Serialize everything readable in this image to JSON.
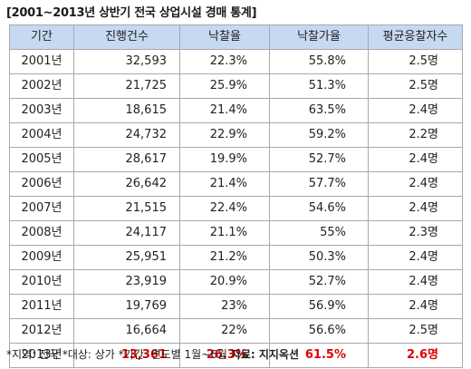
{
  "title": "[2001~2013년 상반기 전국 상업시설 경매 통계]",
  "table": {
    "headers": [
      "기간",
      "진행건수",
      "낙찰율",
      "낙찰가율",
      "평균응찰자수"
    ],
    "rows": [
      [
        "2001년",
        "32,593",
        "22.3%",
        "55.8%",
        "2.5명"
      ],
      [
        "2002년",
        "21,725",
        "25.9%",
        "51.3%",
        "2.5명"
      ],
      [
        "2003년",
        "18,615",
        "21.4%",
        "63.5%",
        "2.4명"
      ],
      [
        "2004년",
        "24,732",
        "22.9%",
        "59.2%",
        "2.2명"
      ],
      [
        "2005년",
        "28,617",
        "19.9%",
        "52.7%",
        "2.4명"
      ],
      [
        "2006년",
        "26,642",
        "21.4%",
        "57.7%",
        "2.4명"
      ],
      [
        "2007년",
        "21,515",
        "22.4%",
        "54.6%",
        "2.4명"
      ],
      [
        "2008년",
        "24,117",
        "21.1%",
        "55%",
        "2.3명"
      ],
      [
        "2009년",
        "25,951",
        "21.2%",
        "50.3%",
        "2.4명"
      ],
      [
        "2010년",
        "23,919",
        "20.9%",
        "52.7%",
        "2.4명"
      ],
      [
        "2011년",
        "19,769",
        "23%",
        "56.9%",
        "2.4명"
      ],
      [
        "2012년",
        "16,664",
        "22%",
        "56.6%",
        "2.5명"
      ],
      [
        "2013년",
        "13,361",
        "26.3%",
        "61.5%",
        "2.6명"
      ]
    ],
    "highlight_row_index": 12,
    "highlight_color": "#e00000",
    "header_bg": "#c6d9f1"
  },
  "footnote": {
    "text": "*지역: 전국 *대상: 상가  *기간: 연도별 1월~6월",
    "source": "자료: 지지옥션"
  }
}
